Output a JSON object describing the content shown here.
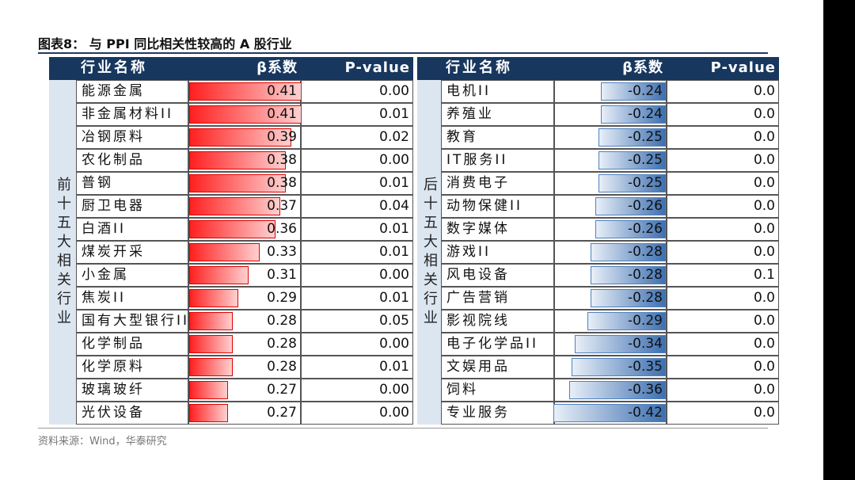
{
  "title": "图表8： 与 PPI 同比相关性较高的 A 股行业",
  "left": {
    "side_label": "前十五大相关行业",
    "headers": [
      "行业名称",
      "β系数",
      "P-value"
    ],
    "rows": [
      {
        "name": "能源金属",
        "beta": 0.41,
        "p": "0.00"
      },
      {
        "name": "非金属材料II",
        "beta": 0.41,
        "p": "0.01"
      },
      {
        "name": "冶钢原料",
        "beta": 0.39,
        "p": "0.02"
      },
      {
        "name": "农化制品",
        "beta": 0.38,
        "p": "0.00"
      },
      {
        "name": "普钢",
        "beta": 0.38,
        "p": "0.01"
      },
      {
        "name": "厨卫电器",
        "beta": 0.37,
        "p": "0.04"
      },
      {
        "name": "白酒II",
        "beta": 0.36,
        "p": "0.01"
      },
      {
        "name": "煤炭开采",
        "beta": 0.33,
        "p": "0.01"
      },
      {
        "name": "小金属",
        "beta": 0.31,
        "p": "0.00"
      },
      {
        "name": "焦炭II",
        "beta": 0.29,
        "p": "0.01"
      },
      {
        "name": "国有大型银行II",
        "beta": 0.28,
        "p": "0.05"
      },
      {
        "name": "化学制品",
        "beta": 0.28,
        "p": "0.00"
      },
      {
        "name": "化学原料",
        "beta": 0.28,
        "p": "0.01"
      },
      {
        "name": "玻璃玻纤",
        "beta": 0.27,
        "p": "0.00"
      },
      {
        "name": "光伏设备",
        "beta": 0.27,
        "p": "0.00"
      }
    ]
  },
  "right": {
    "side_label": "后十五大相关行业",
    "headers": [
      "行业名称",
      "β系数",
      "P-value"
    ],
    "rows": [
      {
        "name": "电机II",
        "beta": -0.24,
        "p": "0.0"
      },
      {
        "name": "养殖业",
        "beta": -0.24,
        "p": "0.0"
      },
      {
        "name": "教育",
        "beta": -0.25,
        "p": "0.0"
      },
      {
        "name": "IT服务II",
        "beta": -0.25,
        "p": "0.0"
      },
      {
        "name": "消费电子",
        "beta": -0.25,
        "p": "0.0"
      },
      {
        "name": "动物保健II",
        "beta": -0.26,
        "p": "0.0"
      },
      {
        "name": "数字媒体",
        "beta": -0.26,
        "p": "0.0"
      },
      {
        "name": "游戏II",
        "beta": -0.28,
        "p": "0.0"
      },
      {
        "name": "风电设备",
        "beta": -0.28,
        "p": "0.1"
      },
      {
        "name": "广告营销",
        "beta": -0.28,
        "p": "0.0"
      },
      {
        "name": "影视院线",
        "beta": -0.29,
        "p": "0.0"
      },
      {
        "name": "电子化学品II",
        "beta": -0.34,
        "p": "0.0"
      },
      {
        "name": "文娱用品",
        "beta": -0.35,
        "p": "0.0"
      },
      {
        "name": "饲料",
        "beta": -0.36,
        "p": "0.0"
      },
      {
        "name": "专业服务",
        "beta": -0.42,
        "p": "0.0"
      }
    ]
  },
  "source": "资料来源：Wind，华泰研究"
}
